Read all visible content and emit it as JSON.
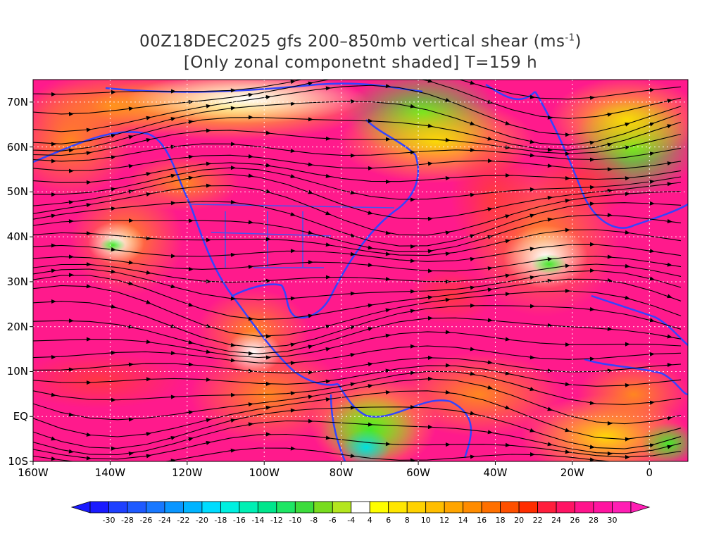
{
  "title": {
    "line1_pre": "00Z18DEC2025 gfs 200–850mb vertical shear (ms",
    "line1_sup": "-1",
    "line1_post": ")",
    "line2": "[Only zonal componetnt shaded] T=159 h"
  },
  "map": {
    "lon_range": [
      -160,
      10
    ],
    "lat_range": [
      -10,
      75
    ],
    "y_ticks": [
      "70N",
      "60N",
      "50N",
      "40N",
      "30N",
      "20N",
      "10N",
      "EQ",
      "10S"
    ],
    "x_ticks": [
      "160W",
      "140W",
      "120W",
      "100W",
      "80W",
      "60W",
      "40W",
      "20W",
      "0"
    ],
    "colors": {
      "strong_positive": "#ff1a8c",
      "positive": "#ff4040",
      "moderate": "#ff8c1a",
      "weak": "#ffd700",
      "neutral": "#ffffff",
      "negative": "#55ee22",
      "strong_negative": "#00dddd",
      "coastline": "#3344ff",
      "streamline": "#000000"
    }
  },
  "colorbar": {
    "labels": [
      "-30",
      "-28",
      "-26",
      "-24",
      "-22",
      "-20",
      "-18",
      "-16",
      "-14",
      "-12",
      "-10",
      "-8",
      "-6",
      "-4",
      "4",
      "6",
      "8",
      "10",
      "12",
      "14",
      "16",
      "18",
      "20",
      "22",
      "24",
      "26",
      "28",
      "30"
    ],
    "colors": [
      "#1a1aff",
      "#1e40ff",
      "#1e5aff",
      "#1878ff",
      "#0a96ff",
      "#00b4ff",
      "#00dcff",
      "#00f0e0",
      "#00f0b4",
      "#00e68c",
      "#1ee664",
      "#3cdc3c",
      "#78dc1e",
      "#b4e61e",
      "#ffffff",
      "#ffff00",
      "#ffe600",
      "#ffd200",
      "#ffbe00",
      "#ffa500",
      "#ff8c00",
      "#ff7000",
      "#ff5000",
      "#ff2d00",
      "#ff1e3c",
      "#ff1464",
      "#ff148c",
      "#ff14a0",
      "#ff1eb4"
    ]
  }
}
